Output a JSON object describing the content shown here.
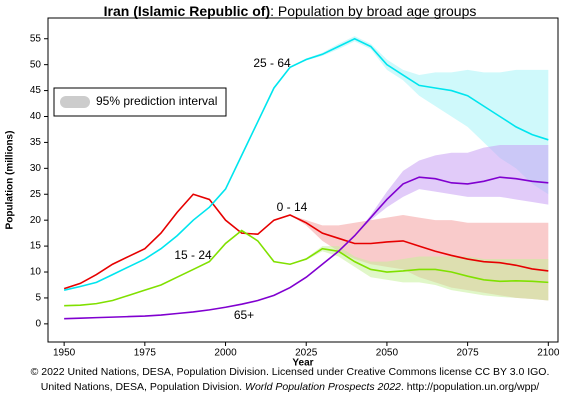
{
  "chart_data": {
    "type": "line",
    "title_country": "Iran (Islamic Republic of)",
    "title": ": Population by broad age groups",
    "xlabel": "Year",
    "ylabel": "Population (millions)",
    "legend": {
      "label": "95% prediction interval",
      "color": "#cccccc",
      "position": "upper left"
    },
    "source": [
      "© 2022 United Nations, DESA, Population Division. Licensed under Creative Commons license CC BY 3.0 IGO.",
      "United Nations, DESA, Population Division. ",
      "World Population Prospects 2022",
      ". http://population.un.org/wpp/"
    ],
    "xlim": [
      1945,
      2103
    ],
    "ylim": [
      -3.5,
      59
    ],
    "xticks": [
      1950,
      1975,
      2000,
      2025,
      2050,
      2075,
      2100
    ],
    "yticks": [
      0,
      5,
      10,
      15,
      20,
      25,
      30,
      35,
      40,
      45,
      50,
      55
    ],
    "x": [
      1950,
      1955,
      1960,
      1965,
      1970,
      1975,
      1980,
      1985,
      1990,
      1995,
      2000,
      2005,
      2010,
      2015,
      2020,
      2025,
      2030,
      2035,
      2040,
      2045,
      2050,
      2055,
      2060,
      2065,
      2070,
      2075,
      2080,
      2085,
      2090,
      2095,
      2100
    ],
    "series": [
      {
        "name": "0 - 14",
        "color": "#e60000",
        "band_color": "#f4a0a0",
        "values": [
          6.8,
          7.8,
          9.5,
          11.5,
          13,
          14.5,
          17.5,
          21.5,
          25,
          24,
          20,
          17.5,
          17.3,
          20,
          21,
          19.5,
          17.5,
          16.5,
          15.5,
          15.5,
          15.8,
          16,
          15,
          14,
          13.2,
          12.5,
          12,
          11.8,
          11.3,
          10.6,
          10.2
        ],
        "lower": [
          null,
          null,
          null,
          null,
          null,
          null,
          null,
          null,
          null,
          null,
          null,
          null,
          null,
          null,
          21,
          19,
          16,
          14,
          12.5,
          11.5,
          11,
          10.5,
          9,
          8,
          7,
          6.5,
          6,
          5.5,
          5,
          4.8,
          4.5
        ],
        "upper": [
          null,
          null,
          null,
          null,
          null,
          null,
          null,
          null,
          null,
          null,
          null,
          null,
          null,
          null,
          21,
          20,
          19,
          19,
          19.5,
          20,
          20.5,
          21,
          20.5,
          20,
          20,
          19.5,
          19.5,
          19.5,
          19.5,
          19.5,
          19.5
        ]
      },
      {
        "name": "15 - 24",
        "color": "#80e000",
        "band_color": "#c6f09a",
        "values": [
          3.5,
          3.6,
          3.9,
          4.5,
          5.5,
          6.5,
          7.5,
          9,
          10.5,
          12,
          15.5,
          18,
          16,
          12,
          11.5,
          12.5,
          14.5,
          14,
          12,
          10.5,
          10,
          10.2,
          10.5,
          10.5,
          10,
          9.2,
          8.5,
          8.2,
          8.3,
          8.2,
          8
        ],
        "lower": [
          null,
          null,
          null,
          null,
          null,
          null,
          null,
          null,
          null,
          null,
          null,
          null,
          null,
          null,
          11.5,
          12.3,
          14,
          13,
          11,
          9,
          8.5,
          8,
          8,
          7.5,
          6.5,
          6,
          5.5,
          5.2,
          5,
          4.8,
          4.5
        ],
        "upper": [
          null,
          null,
          null,
          null,
          null,
          null,
          null,
          null,
          null,
          null,
          null,
          null,
          null,
          null,
          11.5,
          12.7,
          15,
          15,
          13,
          12,
          12,
          12.5,
          13,
          13,
          13,
          13,
          12.5,
          12.5,
          12.5,
          12.5,
          12.5
        ]
      },
      {
        "name": "25 - 64",
        "color": "#00e5ee",
        "band_color": "#a8f4f8",
        "values": [
          6.5,
          7.2,
          8,
          9.5,
          11,
          12.5,
          14.5,
          17,
          20,
          22.5,
          26,
          32.5,
          39,
          45.5,
          49.5,
          51,
          52,
          53.5,
          55,
          53.5,
          50,
          48,
          46,
          45.5,
          45,
          44,
          42,
          40,
          38,
          36.5,
          35.5
        ],
        "lower": [
          null,
          null,
          null,
          null,
          null,
          null,
          null,
          null,
          null,
          null,
          null,
          null,
          null,
          null,
          49.5,
          50.8,
          51.7,
          53,
          54.5,
          53,
          49,
          47,
          44,
          42,
          40,
          38,
          35,
          32,
          30,
          27,
          25
        ],
        "upper": [
          null,
          null,
          null,
          null,
          null,
          null,
          null,
          null,
          null,
          null,
          null,
          null,
          null,
          null,
          49.5,
          51.2,
          52.3,
          54,
          55.5,
          54,
          51,
          49,
          48,
          48.5,
          48.5,
          49,
          48.5,
          48.5,
          49,
          49,
          49
        ]
      },
      {
        "name": "65+",
        "color": "#8000d0",
        "band_color": "#c8a0f4",
        "values": [
          1,
          1.1,
          1.2,
          1.3,
          1.4,
          1.5,
          1.7,
          2,
          2.3,
          2.7,
          3.2,
          3.8,
          4.5,
          5.5,
          7,
          9,
          11.5,
          14,
          17,
          20.5,
          24,
          27,
          28.3,
          28,
          27.2,
          27,
          27.5,
          28.3,
          28,
          27.5,
          27.2
        ],
        "lower": [
          null,
          null,
          null,
          null,
          null,
          null,
          null,
          null,
          null,
          null,
          null,
          null,
          null,
          null,
          7,
          9,
          11.5,
          14,
          17,
          20,
          22.5,
          24.5,
          26,
          25.5,
          25,
          24.5,
          24.5,
          24.5,
          24,
          23.5,
          23
        ],
        "upper": [
          null,
          null,
          null,
          null,
          null,
          null,
          null,
          null,
          null,
          null,
          null,
          null,
          null,
          null,
          7,
          9,
          11.5,
          14,
          17,
          21,
          25.5,
          29.5,
          31.5,
          32.5,
          33,
          33,
          34,
          34.5,
          34.5,
          34.5,
          34.5
        ]
      }
    ]
  }
}
